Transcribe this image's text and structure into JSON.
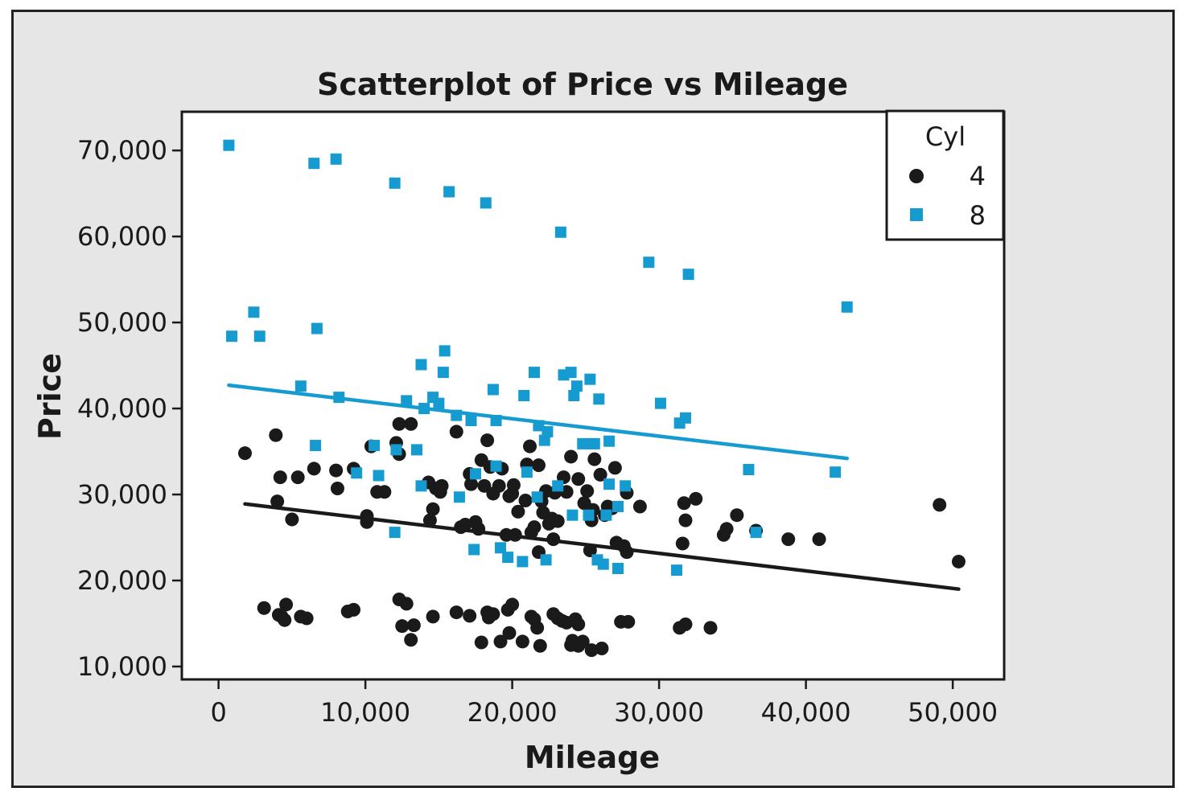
{
  "chart_data": {
    "type": "scatter",
    "title": "Scatterplot of Price vs Mileage",
    "xlabel": "Mileage",
    "ylabel": "Price",
    "xlim": [
      -2500,
      53500
    ],
    "ylim": [
      8500,
      74500
    ],
    "xticks": [
      0,
      10000,
      20000,
      30000,
      40000,
      50000
    ],
    "xtick_labels": [
      "0",
      "10,000",
      "20,000",
      "30,000",
      "40,000",
      "50,000"
    ],
    "yticks": [
      10000,
      20000,
      30000,
      40000,
      50000,
      60000,
      70000
    ],
    "ytick_labels": [
      "10,000",
      "20,000",
      "30,000",
      "40,000",
      "50,000",
      "60,000",
      "70,000"
    ],
    "grid": false,
    "legend": {
      "title": "Cyl",
      "position": "top-right"
    },
    "series": [
      {
        "name": "4",
        "marker": "circle",
        "color": "#1a1a1a",
        "points": [
          [
            1800,
            34800
          ],
          [
            3900,
            36900
          ],
          [
            4000,
            29200
          ],
          [
            4200,
            32000
          ],
          [
            5000,
            27100
          ],
          [
            5400,
            32000
          ],
          [
            6500,
            33000
          ],
          [
            8000,
            32800
          ],
          [
            8100,
            30700
          ],
          [
            9200,
            33000
          ],
          [
            10100,
            27500
          ],
          [
            10100,
            26800
          ],
          [
            10400,
            35600
          ],
          [
            10800,
            30300
          ],
          [
            11300,
            30300
          ],
          [
            12100,
            36000
          ],
          [
            12300,
            34700
          ],
          [
            12300,
            38200
          ],
          [
            13100,
            38200
          ],
          [
            14300,
            31400
          ],
          [
            14400,
            27000
          ],
          [
            14600,
            28300
          ],
          [
            14800,
            30700
          ],
          [
            15100,
            30300
          ],
          [
            15200,
            31000
          ],
          [
            16200,
            37300
          ],
          [
            16500,
            26200
          ],
          [
            16800,
            26500
          ],
          [
            17100,
            32400
          ],
          [
            17200,
            31200
          ],
          [
            17500,
            26800
          ],
          [
            17700,
            26000
          ],
          [
            17900,
            34000
          ],
          [
            18100,
            31000
          ],
          [
            18300,
            36300
          ],
          [
            18500,
            33200
          ],
          [
            18700,
            30100
          ],
          [
            19100,
            31000
          ],
          [
            19300,
            33000
          ],
          [
            19600,
            25300
          ],
          [
            19800,
            29800
          ],
          [
            20000,
            30100
          ],
          [
            20100,
            31100
          ],
          [
            20200,
            25300
          ],
          [
            20400,
            28000
          ],
          [
            20900,
            29300
          ],
          [
            21000,
            33500
          ],
          [
            21200,
            35600
          ],
          [
            21300,
            25600
          ],
          [
            21500,
            26200
          ],
          [
            21800,
            23300
          ],
          [
            21800,
            33400
          ],
          [
            22000,
            29200
          ],
          [
            22100,
            27900
          ],
          [
            22300,
            30400
          ],
          [
            22500,
            26600
          ],
          [
            22700,
            27200
          ],
          [
            22800,
            24800
          ],
          [
            22900,
            30200
          ],
          [
            23100,
            26900
          ],
          [
            23500,
            32000
          ],
          [
            23700,
            30300
          ],
          [
            24000,
            34400
          ],
          [
            24500,
            31800
          ],
          [
            24900,
            29000
          ],
          [
            25100,
            30400
          ],
          [
            25300,
            23500
          ],
          [
            25400,
            27000
          ],
          [
            25500,
            28200
          ],
          [
            25600,
            34100
          ],
          [
            26000,
            32300
          ],
          [
            26300,
            27600
          ],
          [
            26500,
            28600
          ],
          [
            26800,
            28400
          ],
          [
            27000,
            33100
          ],
          [
            27100,
            24400
          ],
          [
            27600,
            24000
          ],
          [
            27800,
            23300
          ],
          [
            27800,
            30200
          ],
          [
            28700,
            28600
          ],
          [
            31600,
            24300
          ],
          [
            31700,
            29000
          ],
          [
            31800,
            27000
          ],
          [
            32500,
            29500
          ],
          [
            34400,
            25300
          ],
          [
            34600,
            26000
          ],
          [
            35300,
            27600
          ],
          [
            36600,
            25800
          ],
          [
            38800,
            24800
          ],
          [
            40900,
            24800
          ],
          [
            49100,
            28800
          ],
          [
            50400,
            22200
          ],
          [
            3100,
            16800
          ],
          [
            4100,
            16000
          ],
          [
            4300,
            15800
          ],
          [
            4500,
            15400
          ],
          [
            4600,
            17200
          ],
          [
            5600,
            15800
          ],
          [
            6000,
            15600
          ],
          [
            8800,
            16400
          ],
          [
            9200,
            16600
          ],
          [
            12300,
            17800
          ],
          [
            12500,
            14700
          ],
          [
            12800,
            17300
          ],
          [
            13100,
            13100
          ],
          [
            13300,
            14800
          ],
          [
            14600,
            15800
          ],
          [
            16200,
            16300
          ],
          [
            17100,
            15900
          ],
          [
            17900,
            12800
          ],
          [
            18300,
            16300
          ],
          [
            18400,
            15700
          ],
          [
            18700,
            16100
          ],
          [
            19200,
            12900
          ],
          [
            19700,
            16600
          ],
          [
            19800,
            13900
          ],
          [
            20000,
            17200
          ],
          [
            20700,
            12900
          ],
          [
            21300,
            15800
          ],
          [
            21500,
            15500
          ],
          [
            21700,
            14500
          ],
          [
            21900,
            12400
          ],
          [
            22800,
            16100
          ],
          [
            23100,
            15600
          ],
          [
            23400,
            15300
          ],
          [
            23700,
            15100
          ],
          [
            24000,
            12500
          ],
          [
            24100,
            13000
          ],
          [
            24300,
            15500
          ],
          [
            24500,
            12400
          ],
          [
            24500,
            14900
          ],
          [
            24800,
            12900
          ],
          [
            25400,
            11900
          ],
          [
            26100,
            12100
          ],
          [
            27400,
            15200
          ],
          [
            27900,
            15200
          ],
          [
            31400,
            14500
          ],
          [
            31800,
            14900
          ],
          [
            33500,
            14500
          ]
        ]
      },
      {
        "name": "8",
        "marker": "square",
        "color": "#169bd0",
        "points": [
          [
            700,
            70600
          ],
          [
            900,
            48400
          ],
          [
            2400,
            51200
          ],
          [
            2800,
            48400
          ],
          [
            5600,
            42600
          ],
          [
            6500,
            68500
          ],
          [
            6600,
            35700
          ],
          [
            6700,
            49300
          ],
          [
            8000,
            69000
          ],
          [
            8200,
            41300
          ],
          [
            9400,
            32500
          ],
          [
            10600,
            35700
          ],
          [
            10900,
            32200
          ],
          [
            12000,
            66200
          ],
          [
            12000,
            25600
          ],
          [
            12100,
            35200
          ],
          [
            12800,
            40900
          ],
          [
            13500,
            35200
          ],
          [
            13800,
            45100
          ],
          [
            13800,
            31000
          ],
          [
            14000,
            40000
          ],
          [
            14600,
            41300
          ],
          [
            15000,
            40600
          ],
          [
            15300,
            44200
          ],
          [
            15400,
            46700
          ],
          [
            15700,
            65200
          ],
          [
            16200,
            39200
          ],
          [
            16400,
            29700
          ],
          [
            17200,
            38600
          ],
          [
            17400,
            23600
          ],
          [
            17500,
            32400
          ],
          [
            18200,
            63900
          ],
          [
            18700,
            42200
          ],
          [
            18900,
            33300
          ],
          [
            18900,
            38600
          ],
          [
            19200,
            23800
          ],
          [
            19700,
            22700
          ],
          [
            20700,
            22200
          ],
          [
            20800,
            41500
          ],
          [
            21000,
            32600
          ],
          [
            21500,
            44200
          ],
          [
            21700,
            29700
          ],
          [
            21800,
            38000
          ],
          [
            22200,
            36300
          ],
          [
            22300,
            22400
          ],
          [
            22400,
            37300
          ],
          [
            23100,
            31000
          ],
          [
            23300,
            60500
          ],
          [
            23500,
            43900
          ],
          [
            24000,
            44200
          ],
          [
            24100,
            27600
          ],
          [
            24200,
            41500
          ],
          [
            24400,
            42600
          ],
          [
            24800,
            35900
          ],
          [
            25200,
            27600
          ],
          [
            25300,
            43400
          ],
          [
            25400,
            35900
          ],
          [
            25600,
            35900
          ],
          [
            25800,
            22400
          ],
          [
            25900,
            41100
          ],
          [
            26200,
            21900
          ],
          [
            26400,
            27600
          ],
          [
            26600,
            31200
          ],
          [
            26600,
            36200
          ],
          [
            27200,
            21400
          ],
          [
            27200,
            28600
          ],
          [
            27700,
            31000
          ],
          [
            29300,
            57000
          ],
          [
            30100,
            40600
          ],
          [
            31200,
            21200
          ],
          [
            31400,
            38300
          ],
          [
            31800,
            38900
          ],
          [
            32000,
            55600
          ],
          [
            36100,
            32900
          ],
          [
            36600,
            25600
          ],
          [
            42000,
            32600
          ],
          [
            42800,
            51800
          ]
        ]
      }
    ],
    "fit_lines": [
      {
        "name": "4",
        "color": "#1a1a1a",
        "x": [
          1800,
          50400
        ],
        "y": [
          28900,
          19000
        ]
      },
      {
        "name": "8",
        "color": "#169bd0",
        "x": [
          700,
          42800
        ],
        "y": [
          42700,
          34200
        ]
      }
    ]
  }
}
